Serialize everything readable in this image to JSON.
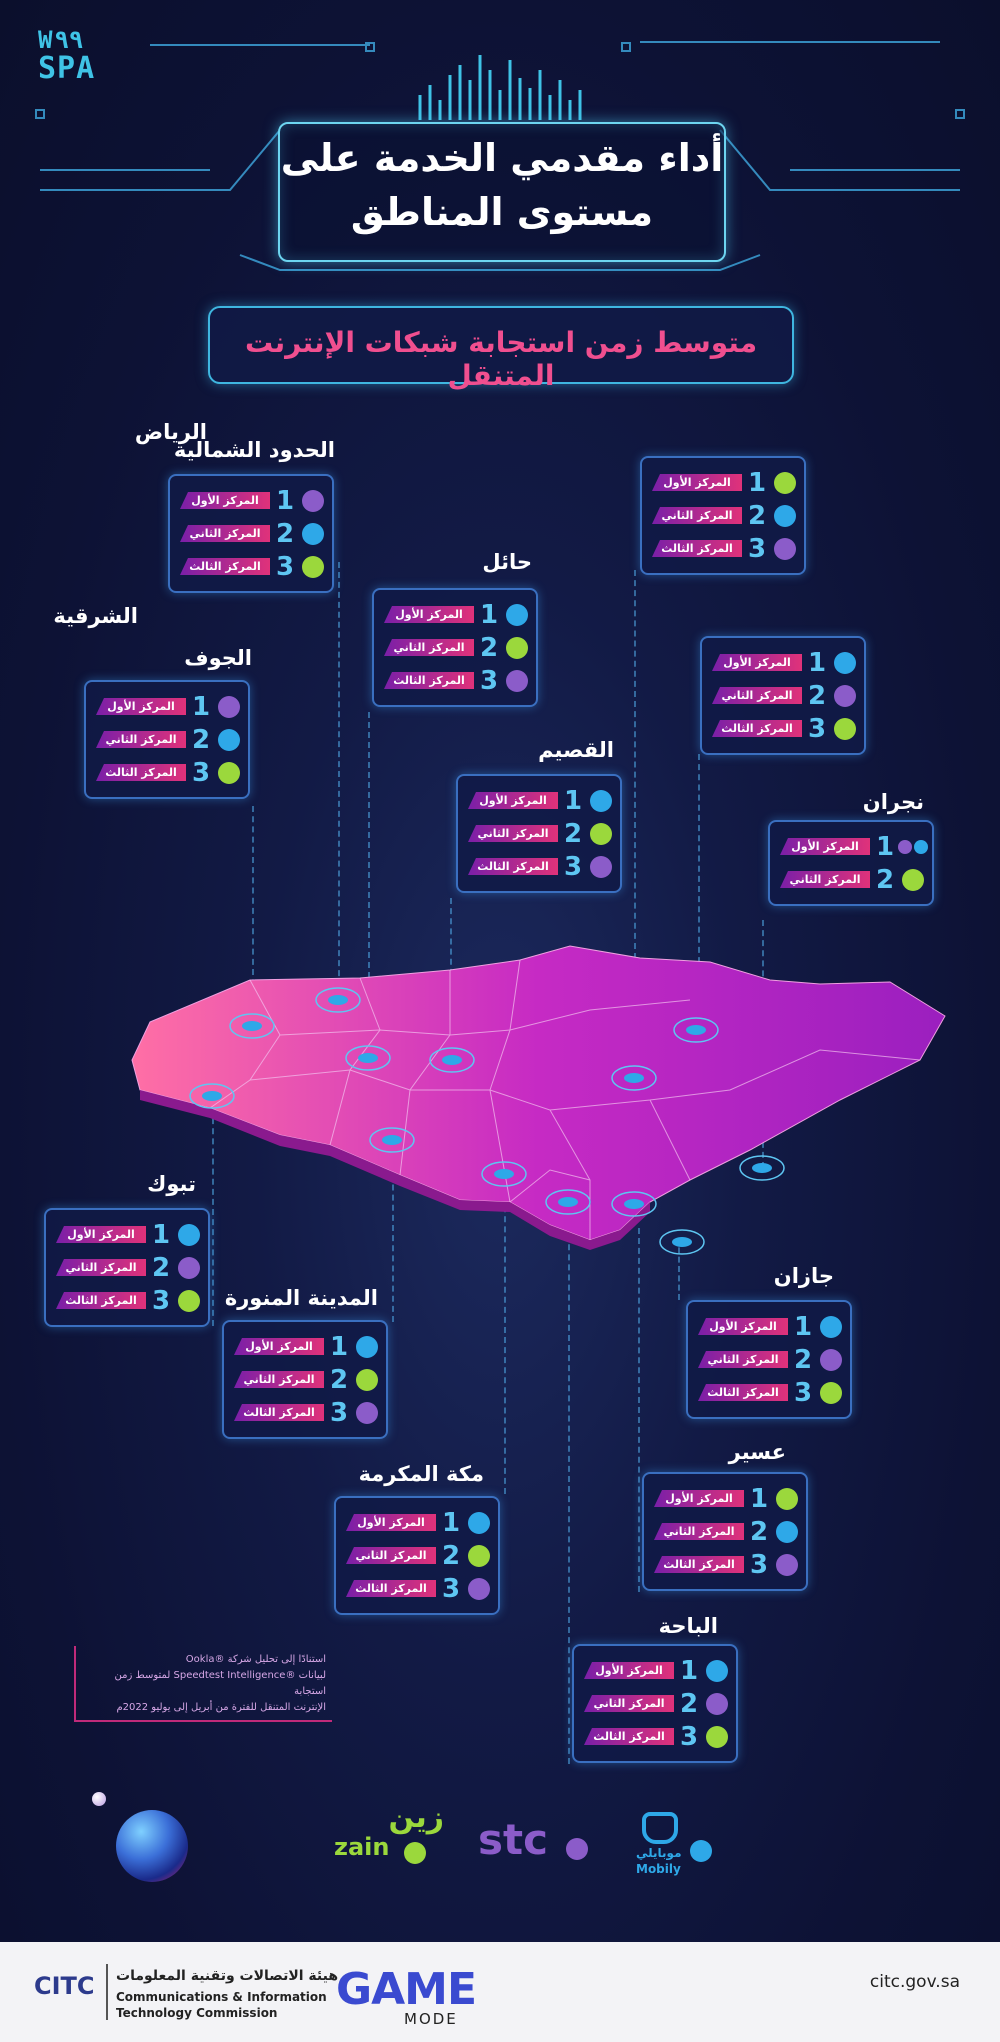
{
  "logo": {
    "line1": "W٩٩",
    "line2": "SPA"
  },
  "title": {
    "line1": "أداء مقدمي الخدمة على",
    "line2": "مستوى المناطق"
  },
  "subtitle": "متوسط زمن استجابة شبكات الإنترنت المتنقل",
  "rank_labels": [
    "المركز الأول",
    "المركز الثاني",
    "المركز الثالث"
  ],
  "colors": {
    "green": "#9bd83c",
    "blue": "#2ea8e8",
    "purple": "#8b5cc9",
    "accent_pink": "#f04f8f",
    "frame_cyan": "#6dd5f0"
  },
  "regions": [
    {
      "name": "الحدود الشمالية",
      "ranks": [
        {
          "num": "1",
          "operator": "stc",
          "color": "#8b5cc9"
        },
        {
          "num": "2",
          "operator": "mobily",
          "color": "#2ea8e8"
        },
        {
          "num": "3",
          "operator": "zain",
          "color": "#9bd83c"
        }
      ]
    },
    {
      "name": "الرياض",
      "ranks": [
        {
          "num": "1",
          "operator": "zain",
          "color": "#9bd83c"
        },
        {
          "num": "2",
          "operator": "mobily",
          "color": "#2ea8e8"
        },
        {
          "num": "3",
          "operator": "stc",
          "color": "#8b5cc9"
        }
      ]
    },
    {
      "name": "حائل",
      "ranks": [
        {
          "num": "1",
          "operator": "mobily",
          "color": "#2ea8e8"
        },
        {
          "num": "2",
          "operator": "zain",
          "color": "#9bd83c"
        },
        {
          "num": "3",
          "operator": "stc",
          "color": "#8b5cc9"
        }
      ]
    },
    {
      "name": "الشرقية",
      "ranks": [
        {
          "num": "1",
          "operator": "mobily",
          "color": "#2ea8e8"
        },
        {
          "num": "2",
          "operator": "stc",
          "color": "#8b5cc9"
        },
        {
          "num": "3",
          "operator": "zain",
          "color": "#9bd83c"
        }
      ]
    },
    {
      "name": "الجوف",
      "ranks": [
        {
          "num": "1",
          "operator": "stc",
          "color": "#8b5cc9"
        },
        {
          "num": "2",
          "operator": "mobily",
          "color": "#2ea8e8"
        },
        {
          "num": "3",
          "operator": "zain",
          "color": "#9bd83c"
        }
      ]
    },
    {
      "name": "القصيم",
      "ranks": [
        {
          "num": "1",
          "operator": "mobily",
          "color": "#2ea8e8"
        },
        {
          "num": "2",
          "operator": "zain",
          "color": "#9bd83c"
        },
        {
          "num": "3",
          "operator": "stc",
          "color": "#8b5cc9"
        }
      ]
    },
    {
      "name": "نجران",
      "ranks": [
        {
          "num": "1",
          "operator": "stc+mobily",
          "color": "#8b5cc9",
          "color2": "#2ea8e8"
        },
        {
          "num": "2",
          "operator": "zain",
          "color": "#9bd83c"
        }
      ]
    },
    {
      "name": "تبوك",
      "ranks": [
        {
          "num": "1",
          "operator": "mobily",
          "color": "#2ea8e8"
        },
        {
          "num": "2",
          "operator": "stc",
          "color": "#8b5cc9"
        },
        {
          "num": "3",
          "operator": "zain",
          "color": "#9bd83c"
        }
      ]
    },
    {
      "name": "جازان",
      "ranks": [
        {
          "num": "1",
          "operator": "mobily",
          "color": "#2ea8e8"
        },
        {
          "num": "2",
          "operator": "stc",
          "color": "#8b5cc9"
        },
        {
          "num": "3",
          "operator": "zain",
          "color": "#9bd83c"
        }
      ]
    },
    {
      "name": "المدينة المنورة",
      "ranks": [
        {
          "num": "1",
          "operator": "mobily",
          "color": "#2ea8e8"
        },
        {
          "num": "2",
          "operator": "zain",
          "color": "#9bd83c"
        },
        {
          "num": "3",
          "operator": "stc",
          "color": "#8b5cc9"
        }
      ]
    },
    {
      "name": "عسير",
      "ranks": [
        {
          "num": "1",
          "operator": "zain",
          "color": "#9bd83c"
        },
        {
          "num": "2",
          "operator": "mobily",
          "color": "#2ea8e8"
        },
        {
          "num": "3",
          "operator": "stc",
          "color": "#8b5cc9"
        }
      ]
    },
    {
      "name": "مكة المكرمة",
      "ranks": [
        {
          "num": "1",
          "operator": "mobily",
          "color": "#2ea8e8"
        },
        {
          "num": "2",
          "operator": "zain",
          "color": "#9bd83c"
        },
        {
          "num": "3",
          "operator": "stc",
          "color": "#8b5cc9"
        }
      ]
    },
    {
      "name": "الباحة",
      "ranks": [
        {
          "num": "1",
          "operator": "mobily",
          "color": "#2ea8e8"
        },
        {
          "num": "2",
          "operator": "stc",
          "color": "#8b5cc9"
        },
        {
          "num": "3",
          "operator": "zain",
          "color": "#9bd83c"
        }
      ]
    }
  ],
  "note": {
    "line1": "استنادًا إلى تحليل شركة ®Ookla",
    "line2": "لبيانات ®Speedtest Intelligence لمتوسط زمن استجابة",
    "line3": "الإنترنت المتنقل للفترة من أبريل إلى يوليو 2022م"
  },
  "operators": {
    "zain_ar": "زين",
    "zain_en": "zain",
    "stc": "stc",
    "mobily_ar": "موبايلي",
    "mobily_en": "Mobily"
  },
  "footer": {
    "citc_logo": "CITC",
    "ar_name": "هيئة الاتصالات وتقنية المعلومات",
    "en_name1": "Communications & Information",
    "en_name2": "Technology Commission",
    "game_mode": "GAME",
    "game_mode_sub": "MODE",
    "url": "citc.gov.sa"
  }
}
